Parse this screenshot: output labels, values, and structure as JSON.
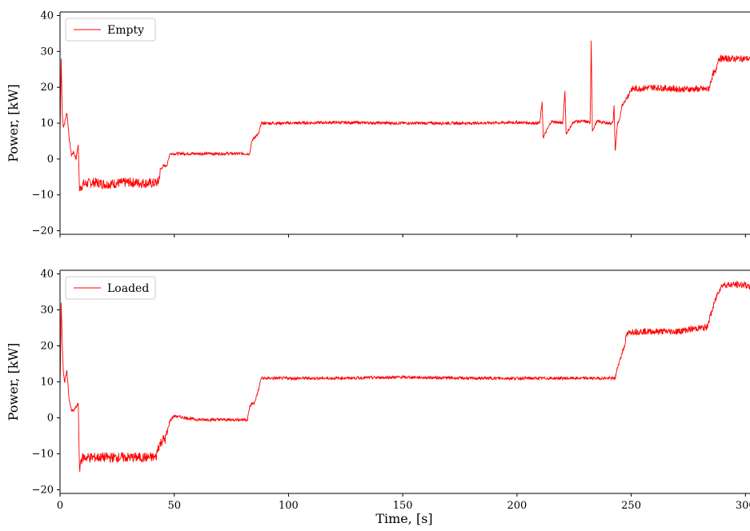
{
  "chart_data": [
    {
      "type": "line",
      "xlabel": "",
      "ylabel": "Power, [kW]",
      "xlim": [
        0,
        302
      ],
      "ylim": [
        -21,
        41
      ],
      "xticks": [
        0,
        50,
        100,
        150,
        200,
        250,
        300
      ],
      "yticks": [
        -20,
        -10,
        0,
        10,
        20,
        30,
        40
      ],
      "ytick_labels": [
        "−20",
        "−10",
        "0",
        "10",
        "20",
        "30",
        "40"
      ],
      "show_xtick_labels": false,
      "grid": false,
      "legend_position": "top-left",
      "color": "#ff0000",
      "series": [
        {
          "name": "Empty",
          "x": [
            0,
            0.5,
            1,
            1.5,
            2,
            3,
            4,
            5,
            6,
            7,
            8,
            8.5,
            9,
            10,
            15,
            20,
            30,
            40,
            43,
            44,
            45,
            46,
            47,
            48,
            50,
            60,
            70,
            80,
            83,
            84,
            85,
            86,
            87,
            88,
            90,
            100,
            120,
            150,
            180,
            200,
            210,
            211,
            211.5,
            215,
            220,
            221,
            221.5,
            225,
            230,
            232,
            232.5,
            233,
            235,
            240,
            242,
            242.5,
            243,
            244,
            245,
            246,
            248,
            250,
            260,
            270,
            280,
            284,
            285,
            286,
            287,
            288,
            290,
            300,
            302
          ],
          "y": [
            7,
            28,
            12,
            9,
            10,
            13,
            6,
            1,
            2,
            0,
            4,
            -9,
            -8,
            -7,
            -6.5,
            -7,
            -6.5,
            -6.8,
            -6.5,
            -3,
            -2,
            -2,
            -1.5,
            1.5,
            1.5,
            1.5,
            1.5,
            1.5,
            1.5,
            5,
            6,
            6.5,
            7,
            10,
            10,
            10,
            10.2,
            10,
            10,
            10.2,
            10,
            16,
            6,
            10.5,
            10,
            19,
            7,
            10.5,
            10.5,
            10,
            33,
            8,
            10.5,
            10,
            10,
            15,
            2,
            10,
            11,
            15,
            17,
            19.5,
            20,
            19.5,
            19.5,
            19.5,
            22,
            24,
            24,
            28,
            28,
            28,
            28
          ]
        }
      ]
    },
    {
      "type": "line",
      "xlabel": "Time, [s]",
      "ylabel": "Power, [kW]",
      "xlim": [
        0,
        302
      ],
      "ylim": [
        -21,
        41
      ],
      "xticks": [
        0,
        50,
        100,
        150,
        200,
        250,
        300
      ],
      "yticks": [
        -20,
        -10,
        0,
        10,
        20,
        30,
        40
      ],
      "ytick_labels": [
        "−20",
        "−10",
        "0",
        "10",
        "20",
        "30",
        "40"
      ],
      "show_xtick_labels": true,
      "grid": false,
      "legend_position": "top-left",
      "color": "#ff0000",
      "series": [
        {
          "name": "Loaded",
          "x": [
            0,
            0.5,
            1,
            1.5,
            2,
            3,
            4,
            5,
            6,
            7,
            8,
            8.5,
            9,
            10,
            15,
            20,
            30,
            40,
            42,
            43,
            44,
            45,
            46,
            47,
            48,
            49,
            50,
            60,
            70,
            80,
            82,
            83,
            84,
            85,
            86,
            87,
            88,
            90,
            100,
            120,
            150,
            180,
            200,
            220,
            240,
            243,
            244,
            245,
            246,
            247,
            248,
            250,
            260,
            270,
            280,
            283,
            284,
            285,
            286,
            287,
            288,
            290,
            300,
            302
          ],
          "y": [
            7,
            32,
            20,
            12,
            10,
            13,
            5,
            2,
            2,
            3,
            4,
            -15,
            -12,
            -11,
            -11,
            -11,
            -11,
            -11,
            -11,
            -8,
            -7,
            -6,
            -6,
            -4,
            -1,
            0,
            0.5,
            -0.5,
            -0.5,
            -0.5,
            -0.5,
            3,
            4,
            4,
            6,
            8,
            11,
            11,
            11,
            11,
            11.3,
            11,
            11,
            11,
            11,
            11,
            14,
            16,
            18,
            20,
            23,
            24,
            24,
            24,
            25,
            25,
            27,
            29,
            31,
            33,
            35,
            37,
            37,
            36
          ]
        }
      ]
    }
  ]
}
